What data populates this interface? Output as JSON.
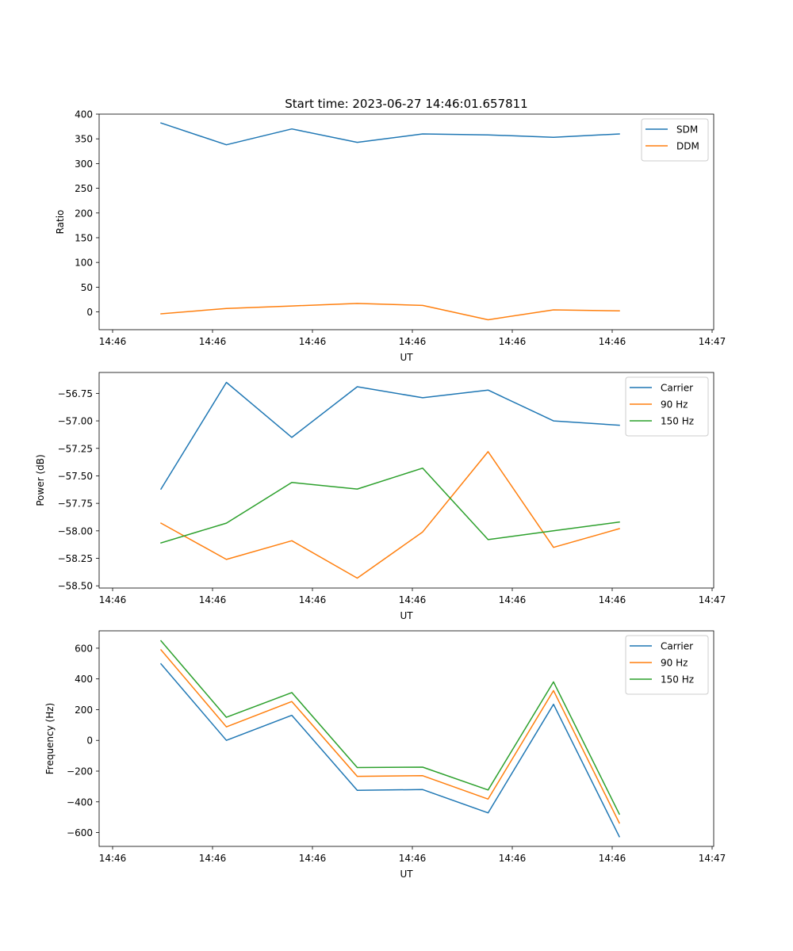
{
  "figure": {
    "title": "Start time: 2023-06-27 14:46:01.657811"
  },
  "chart_data": [
    {
      "type": "line",
      "title": "Start time: 2023-06-27 14:46:01.657811",
      "xlabel": "UT",
      "ylabel": "Ratio",
      "x_tick_labels": [
        "14:46",
        "14:46",
        "14:46",
        "14:46",
        "14:46",
        "14:46",
        "14:47"
      ],
      "y_ticks": [
        0,
        50,
        100,
        150,
        200,
        250,
        300,
        350,
        400
      ],
      "y_tick_labels": [
        "0",
        "50",
        "100",
        "150",
        "200",
        "250",
        "300",
        "350",
        "400"
      ],
      "ylim": [
        -36,
        400
      ],
      "legend_position": "top-right",
      "series": [
        {
          "name": "SDM",
          "color": "#1f77b4",
          "values": [
            382,
            338,
            370,
            343,
            360,
            358,
            353,
            360
          ]
        },
        {
          "name": "DDM",
          "color": "#ff7f0e",
          "values": [
            -4,
            7,
            12,
            17,
            13,
            -16,
            4,
            2
          ]
        }
      ]
    },
    {
      "type": "line",
      "xlabel": "UT",
      "ylabel": "Power (dB)",
      "x_tick_labels": [
        "14:46",
        "14:46",
        "14:46",
        "14:46",
        "14:46",
        "14:46",
        "14:47"
      ],
      "y_ticks": [
        -58.5,
        -58.25,
        -58.0,
        -57.75,
        -57.5,
        -57.25,
        -57.0,
        -56.75
      ],
      "y_tick_labels": [
        "−58.50",
        "−58.25",
        "−58.00",
        "−57.75",
        "−57.50",
        "−57.25",
        "−57.00",
        "−56.75"
      ],
      "ylim": [
        -58.52,
        -56.56
      ],
      "legend_position": "top-right",
      "series": [
        {
          "name": "Carrier",
          "color": "#1f77b4",
          "values": [
            -57.62,
            -56.65,
            -57.15,
            -56.69,
            -56.79,
            -56.72,
            -57.0,
            -57.04
          ]
        },
        {
          "name": "90 Hz",
          "color": "#ff7f0e",
          "values": [
            -57.93,
            -58.26,
            -58.09,
            -58.43,
            -58.01,
            -57.28,
            -58.15,
            -57.98
          ]
        },
        {
          "name": "150 Hz",
          "color": "#2ca02c",
          "values": [
            -58.11,
            -57.93,
            -57.56,
            -57.62,
            -57.43,
            -58.08,
            -58.0,
            -57.92
          ]
        }
      ]
    },
    {
      "type": "line",
      "xlabel": "UT",
      "ylabel": "Frequency (Hz)",
      "x_tick_labels": [
        "14:46",
        "14:46",
        "14:46",
        "14:46",
        "14:46",
        "14:46",
        "14:47"
      ],
      "y_ticks": [
        -600,
        -400,
        -200,
        0,
        200,
        400,
        600
      ],
      "y_tick_labels": [
        "−600",
        "−400",
        "−200",
        "0",
        "200",
        "400",
        "600"
      ],
      "ylim": [
        -690,
        713
      ],
      "legend_position": "top-right",
      "series": [
        {
          "name": "Carrier",
          "color": "#1f77b4",
          "values": [
            498,
            0,
            163,
            -325,
            -320,
            -472,
            235,
            -627
          ]
        },
        {
          "name": "90 Hz",
          "color": "#ff7f0e",
          "values": [
            589,
            88,
            253,
            -234,
            -230,
            -382,
            324,
            -538
          ]
        },
        {
          "name": "150 Hz",
          "color": "#2ca02c",
          "values": [
            648,
            150,
            311,
            -177,
            -174,
            -323,
            381,
            -480
          ]
        }
      ]
    }
  ]
}
